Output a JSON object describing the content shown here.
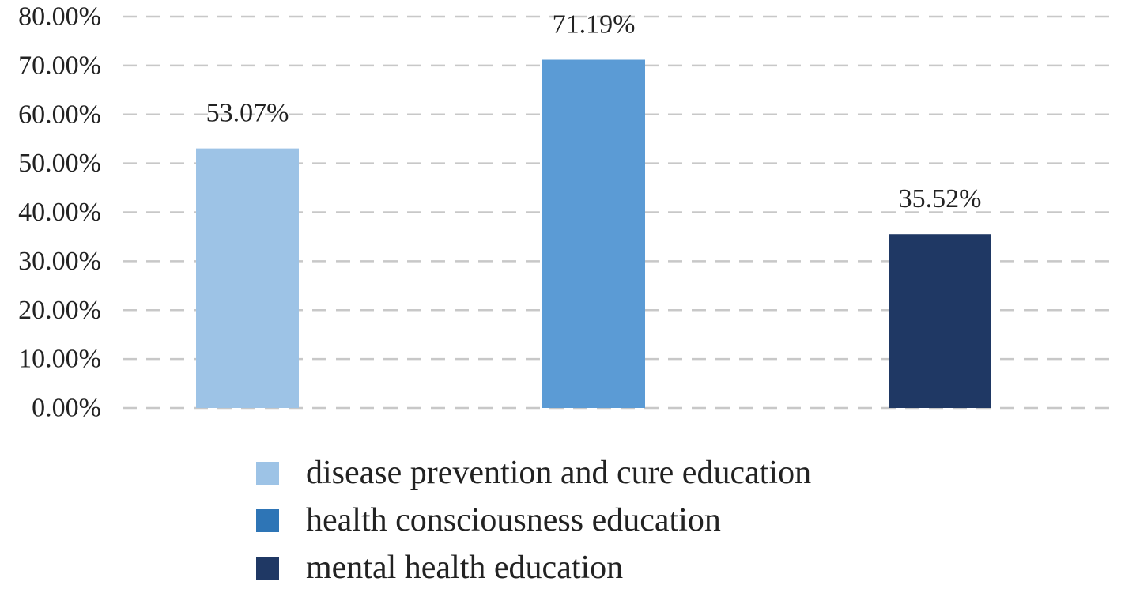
{
  "chart_data": {
    "type": "bar",
    "categories": [
      "disease prevention and cure education",
      "health consciousness education",
      "mental health education"
    ],
    "values": [
      53.07,
      71.19,
      35.52
    ],
    "data_labels": [
      "53.07%",
      "71.19%",
      "35.52%"
    ],
    "ylim": [
      0,
      80
    ],
    "yticks": [
      0,
      10,
      20,
      30,
      40,
      50,
      60,
      70,
      80
    ],
    "ytick_labels": [
      "0.00%",
      "10.00%",
      "20.00%",
      "30.00%",
      "40.00%",
      "50.00%",
      "60.00%",
      "70.00%",
      "80.00%"
    ],
    "grid": "horizontal dashed",
    "legend": {
      "placement": "bottom",
      "entries": [
        "disease prevention and cure education",
        "health consciousness education",
        "mental health education"
      ]
    },
    "colors": {
      "bars": [
        "#9dc3e6",
        "#5b9bd5",
        "#1f3864"
      ],
      "legend": [
        "#9dc3e6",
        "#2e75b6",
        "#1f3864"
      ],
      "grid": "#c8c8c8"
    }
  }
}
